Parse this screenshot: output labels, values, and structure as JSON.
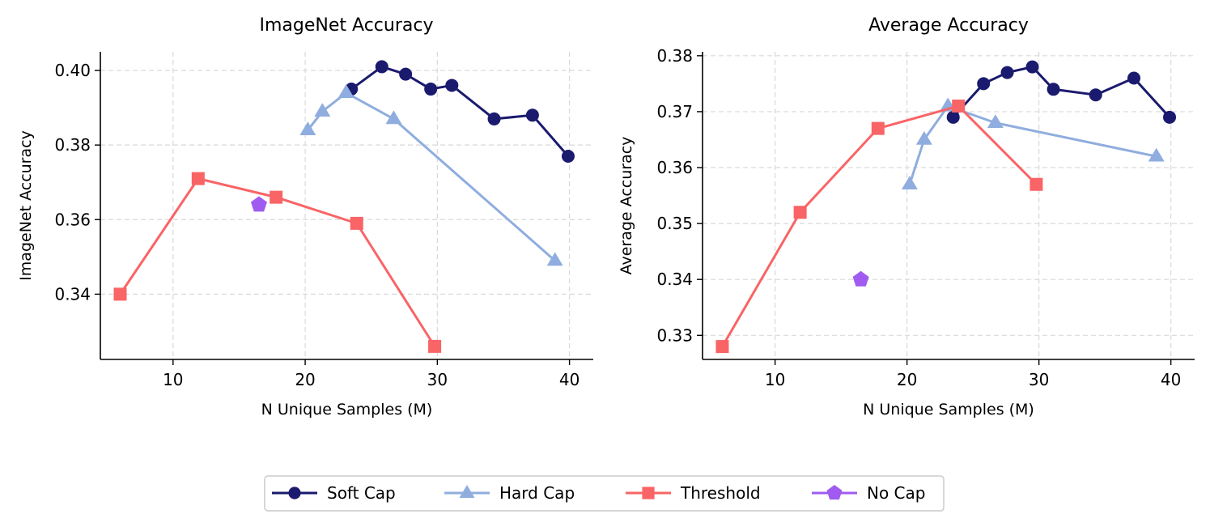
{
  "chart_data": [
    {
      "type": "line",
      "title": "ImageNet Accuracy",
      "xlabel": "N Unique Samples (M)",
      "ylabel": "ImageNet Accuracy",
      "xlim": [
        4.5,
        41.8
      ],
      "ylim": [
        0.3225,
        0.405
      ],
      "xticks": [
        10,
        20,
        30,
        40
      ],
      "xtick_labels": [
        "10",
        "20",
        "30",
        "40"
      ],
      "yticks": [
        0.34,
        0.36,
        0.38,
        0.4
      ],
      "ytick_labels": [
        "0.34",
        "0.36",
        "0.38",
        "0.40"
      ],
      "grid": true,
      "series": [
        {
          "name": "Soft Cap",
          "color": "#1a1a6e",
          "marker": "circle",
          "x": [
            23.5,
            25.8,
            27.6,
            29.5,
            31.1,
            34.3,
            37.2,
            39.9
          ],
          "y": [
            0.395,
            0.401,
            0.399,
            0.395,
            0.396,
            0.387,
            0.388,
            0.377
          ]
        },
        {
          "name": "Hard Cap",
          "color": "#8fadde",
          "marker": "triangle",
          "x": [
            20.2,
            21.3,
            23.1,
            26.7,
            38.9
          ],
          "y": [
            0.384,
            0.389,
            0.394,
            0.387,
            0.349
          ]
        },
        {
          "name": "Threshold",
          "color": "#f96466",
          "marker": "square",
          "x": [
            6.0,
            11.9,
            17.8,
            23.9,
            29.8
          ],
          "y": [
            0.34,
            0.371,
            0.366,
            0.359,
            0.326
          ]
        },
        {
          "name": "No Cap",
          "color": "#a05cf0",
          "marker": "pentagon",
          "x": [
            16.5
          ],
          "y": [
            0.364
          ]
        }
      ]
    },
    {
      "type": "line",
      "title": "Average Accuracy",
      "xlabel": "N Unique Samples (M)",
      "ylabel": "Average Accuracy",
      "xlim": [
        4.5,
        41.8
      ],
      "ylim": [
        0.3257,
        0.3807
      ],
      "xticks": [
        10,
        20,
        30,
        40
      ],
      "xtick_labels": [
        "10",
        "20",
        "30",
        "40"
      ],
      "yticks": [
        0.33,
        0.34,
        0.35,
        0.36,
        0.37,
        0.38
      ],
      "ytick_labels": [
        "0.33",
        "0.34",
        "0.35",
        "0.36",
        "0.37",
        "0.38"
      ],
      "grid": true,
      "series": [
        {
          "name": "Soft Cap",
          "color": "#1a1a6e",
          "marker": "circle",
          "x": [
            23.5,
            25.8,
            27.6,
            29.5,
            31.1,
            34.3,
            37.2,
            39.9
          ],
          "y": [
            0.369,
            0.375,
            0.377,
            0.378,
            0.374,
            0.373,
            0.376,
            0.369
          ]
        },
        {
          "name": "Hard Cap",
          "color": "#8fadde",
          "marker": "triangle",
          "x": [
            20.2,
            21.3,
            23.1,
            26.7,
            38.9
          ],
          "y": [
            0.357,
            0.365,
            0.371,
            0.368,
            0.362
          ]
        },
        {
          "name": "Threshold",
          "color": "#f96466",
          "marker": "square",
          "x": [
            6.0,
            11.9,
            17.8,
            23.9,
            29.8
          ],
          "y": [
            0.328,
            0.352,
            0.367,
            0.371,
            0.357
          ]
        },
        {
          "name": "No Cap",
          "color": "#a05cf0",
          "marker": "pentagon",
          "x": [
            16.5
          ],
          "y": [
            0.34
          ]
        }
      ]
    }
  ],
  "legend": {
    "placement": "bottom-center",
    "items": [
      {
        "label": "Soft Cap",
        "color": "#1a1a6e",
        "marker": "circle"
      },
      {
        "label": "Hard Cap",
        "color": "#8fadde",
        "marker": "triangle"
      },
      {
        "label": "Threshold",
        "color": "#f96466",
        "marker": "square"
      },
      {
        "label": "No Cap",
        "color": "#a05cf0",
        "marker": "pentagon"
      }
    ]
  }
}
